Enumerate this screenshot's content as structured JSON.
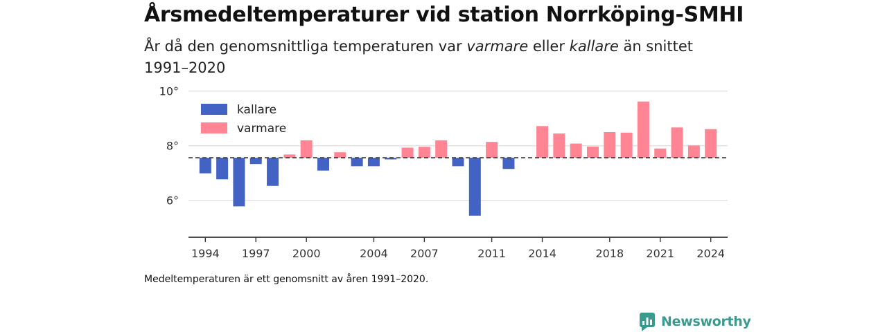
{
  "title": "Årsmedeltemperaturer vid station Norrköping-SMHI",
  "subtitle": {
    "part1": "År då den genomsnittliga temperaturen var ",
    "warm_word": "varmare",
    "part2": " eller ",
    "cold_word": "kallare",
    "part3": " än snittet 1991–2020"
  },
  "note": "Medeltemperaturen är ett genomsnitt av åren 1991–2020.",
  "brand": {
    "name": "Newsworthy",
    "icon": "newsworthy-logo-icon"
  },
  "colors": {
    "cold": "#4363c4",
    "warm": "#ff8594",
    "grid": "#dddddd",
    "axis": "#333333",
    "brand": "#3a9a8e"
  },
  "chart_data": {
    "type": "bar",
    "title": "",
    "xlabel": "",
    "ylabel": "",
    "baseline": 7.56,
    "ylim": [
      4.65,
      10.5
    ],
    "yticks": [
      6,
      8,
      10
    ],
    "ytick_labels": [
      "6°",
      "8°",
      "10°"
    ],
    "xlim": [
      1993,
      2025
    ],
    "xticks": [
      1994,
      1997,
      2000,
      2004,
      2007,
      2011,
      2014,
      2018,
      2021,
      2024
    ],
    "legend": {
      "position": "top-left",
      "items": [
        {
          "name": "kallare",
          "color": "#4363c4"
        },
        {
          "name": "varmare",
          "color": "#ff8594"
        }
      ]
    },
    "years": [
      1994,
      1995,
      1996,
      1997,
      1998,
      1999,
      2000,
      2001,
      2002,
      2003,
      2004,
      2005,
      2006,
      2007,
      2008,
      2009,
      2010,
      2011,
      2012,
      2013,
      2014,
      2015,
      2016,
      2017,
      2018,
      2019,
      2020,
      2021,
      2022,
      2023,
      2024
    ],
    "values": [
      6.99,
      6.77,
      5.78,
      7.33,
      6.53,
      7.68,
      8.2,
      7.09,
      7.76,
      7.25,
      7.25,
      7.5,
      7.93,
      7.96,
      8.2,
      7.25,
      5.44,
      8.14,
      7.15,
      null,
      8.72,
      8.45,
      8.08,
      7.97,
      8.5,
      8.48,
      9.62,
      7.9,
      8.67,
      8.01,
      8.61
    ]
  }
}
